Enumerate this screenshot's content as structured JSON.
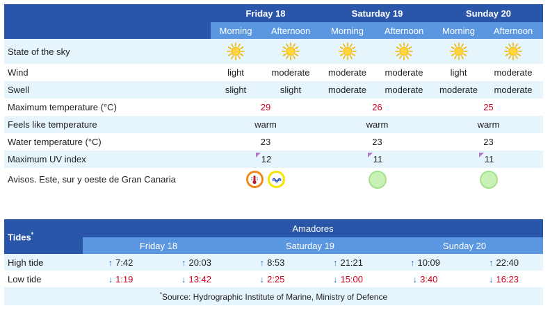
{
  "forecast": {
    "days": [
      "Friday 18",
      "Saturday 19",
      "Sunday 20"
    ],
    "periods": [
      "Morning",
      "Afternoon",
      "Morning",
      "Afternoon",
      "Morning",
      "Afternoon"
    ],
    "rows": {
      "sky": {
        "label": "State of the sky",
        "icon": "sun-icon"
      },
      "wind": {
        "label": "Wind",
        "values": [
          "light",
          "moderate",
          "moderate",
          "moderate",
          "light",
          "moderate"
        ]
      },
      "swell": {
        "label": "Swell",
        "values": [
          "slight",
          "slight",
          "moderate",
          "moderate",
          "moderate",
          "moderate"
        ]
      },
      "max_temp": {
        "label": "Maximum temperature (°C)",
        "values": [
          "29",
          "26",
          "25"
        ]
      },
      "feels_like": {
        "label": "Feels like temperature",
        "values": [
          "warm",
          "warm",
          "warm"
        ]
      },
      "water_temp": {
        "label": "Water temperature (°C)",
        "values": [
          "23",
          "23",
          "23"
        ]
      },
      "uv": {
        "label": "Maximum UV index",
        "values": [
          "12",
          "11",
          "11"
        ]
      },
      "avisos": {
        "label": "Avisos. Este, sur y oeste de Gran Canaria"
      }
    },
    "colors": {
      "header_dark": "#2a56a9",
      "header_light": "#5b97e0",
      "row_alt": "#e5f5fb",
      "temp_red": "#d0021b",
      "warning_orange": "#f08a1c",
      "warning_yellow": "#f5e300",
      "no_warning_green": "#c8f0b7"
    }
  },
  "tides": {
    "title": "Tides",
    "title_mark": "*",
    "location": "Amadores",
    "days": [
      "Friday 18",
      "Saturday 19",
      "Sunday 20"
    ],
    "high": {
      "label": "High tide",
      "times": [
        "7:42",
        "20:03",
        "8:53",
        "21:21",
        "10:09",
        "22:40"
      ]
    },
    "low": {
      "label": "Low tide",
      "times": [
        "1:19",
        "13:42",
        "2:25",
        "15:00",
        "3:40",
        "16:23"
      ]
    },
    "up_arrow": "↑",
    "down_arrow": "↓",
    "footnote_mark": "*",
    "footnote": "Source: Hydrographic Institute of Marine, Ministry of Defence"
  }
}
